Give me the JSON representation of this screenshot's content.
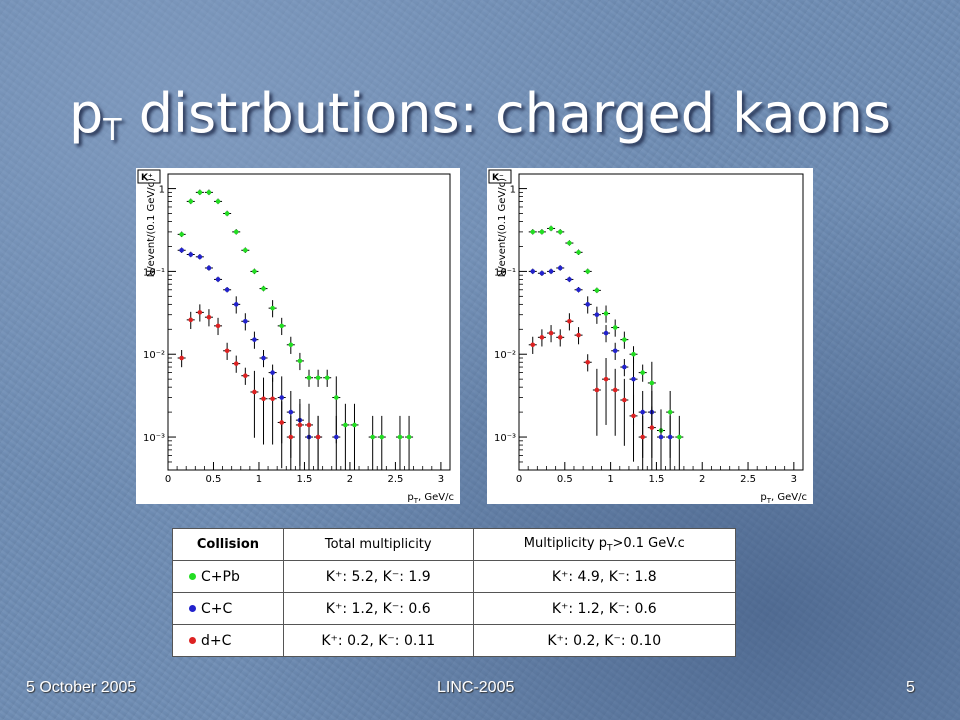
{
  "slide": {
    "title_main": "p",
    "title_sub": "T",
    "title_rest": " distrbutions: charged kaons"
  },
  "footer": {
    "date": "5 October 2005",
    "event": "LINC-2005",
    "page": "5"
  },
  "colors": {
    "CPb": "#22dd22",
    "CC": "#2222cc",
    "dC": "#dd2222"
  },
  "chart_data": [
    {
      "type": "scatter",
      "label_box": "K⁺",
      "xlabel": "p_T, GeV/c",
      "ylabel": "N/event/(0.1 GeV/c)",
      "log_y": true,
      "xlim": [
        0,
        3.1
      ],
      "ylim": [
        0.0004,
        1.5
      ],
      "x_ticks": [
        "0",
        "0.5",
        "1",
        "1.5",
        "2",
        "2.5",
        "3"
      ],
      "y_ticks": [
        "10⁻³",
        "10⁻²",
        "10⁻¹",
        "1"
      ],
      "series": [
        {
          "key": "CPb",
          "color": "#22dd22",
          "points": [
            [
              0.15,
              0.28
            ],
            [
              0.25,
              0.7
            ],
            [
              0.35,
              0.9
            ],
            [
              0.45,
              0.9
            ],
            [
              0.55,
              0.7
            ],
            [
              0.65,
              0.5
            ],
            [
              0.75,
              0.3
            ],
            [
              0.85,
              0.18
            ],
            [
              0.95,
              0.1
            ],
            [
              1.05,
              0.062
            ],
            [
              1.15,
              0.036
            ],
            [
              1.25,
              0.022
            ],
            [
              1.35,
              0.013
            ],
            [
              1.45,
              0.0083
            ],
            [
              1.55,
              0.0052
            ],
            [
              1.65,
              0.0052
            ],
            [
              1.75,
              0.0052
            ],
            [
              1.85,
              0.003
            ],
            [
              1.95,
              0.0014
            ],
            [
              2.05,
              0.0014
            ],
            [
              2.25,
              0.001
            ],
            [
              2.35,
              0.001
            ],
            [
              2.55,
              0.001
            ],
            [
              2.65,
              0.001
            ]
          ]
        },
        {
          "key": "CC",
          "color": "#2222cc",
          "points": [
            [
              0.15,
              0.18
            ],
            [
              0.25,
              0.16
            ],
            [
              0.35,
              0.15
            ],
            [
              0.45,
              0.11
            ],
            [
              0.55,
              0.08
            ],
            [
              0.65,
              0.06
            ],
            [
              0.75,
              0.04
            ],
            [
              0.85,
              0.025
            ],
            [
              0.95,
              0.015
            ],
            [
              1.05,
              0.009
            ],
            [
              1.15,
              0.006
            ],
            [
              1.25,
              0.003
            ],
            [
              1.35,
              0.002
            ],
            [
              1.45,
              0.0016
            ],
            [
              1.55,
              0.001
            ],
            [
              1.65,
              0.001
            ],
            [
              1.85,
              0.001
            ]
          ]
        },
        {
          "key": "dC",
          "color": "#dd2222",
          "points": [
            [
              0.15,
              0.009
            ],
            [
              0.25,
              0.026
            ],
            [
              0.35,
              0.032
            ],
            [
              0.45,
              0.028
            ],
            [
              0.55,
              0.022
            ],
            [
              0.65,
              0.011
            ],
            [
              0.75,
              0.0077
            ],
            [
              0.85,
              0.0055
            ],
            [
              0.95,
              0.0035
            ],
            [
              1.05,
              0.0029
            ],
            [
              1.15,
              0.0029
            ],
            [
              1.25,
              0.0015
            ],
            [
              1.35,
              0.001
            ],
            [
              1.45,
              0.0014
            ],
            [
              1.55,
              0.0014
            ],
            [
              1.65,
              0.001
            ]
          ]
        }
      ]
    },
    {
      "type": "scatter",
      "label_box": "K⁻",
      "xlabel": "p_T, GeV/c",
      "ylabel": "N/event/(0.1 GeV/c)",
      "log_y": true,
      "xlim": [
        0,
        3.1
      ],
      "ylim": [
        0.0004,
        1.5
      ],
      "x_ticks": [
        "0",
        "0.5",
        "1",
        "1.5",
        "2",
        "2.5",
        "3"
      ],
      "y_ticks": [
        "10⁻³",
        "10⁻²",
        "10⁻¹",
        "1"
      ],
      "series": [
        {
          "key": "CPb",
          "color": "#22dd22",
          "points": [
            [
              0.15,
              0.3
            ],
            [
              0.25,
              0.3
            ],
            [
              0.35,
              0.33
            ],
            [
              0.45,
              0.3
            ],
            [
              0.55,
              0.22
            ],
            [
              0.65,
              0.17
            ],
            [
              0.75,
              0.1
            ],
            [
              0.85,
              0.059
            ],
            [
              0.95,
              0.031
            ],
            [
              1.05,
              0.021
            ],
            [
              1.15,
              0.015
            ],
            [
              1.25,
              0.01
            ],
            [
              1.35,
              0.006
            ],
            [
              1.45,
              0.0045
            ],
            [
              1.55,
              0.0012
            ],
            [
              1.65,
              0.002
            ],
            [
              1.75,
              0.001
            ]
          ]
        },
        {
          "key": "CC",
          "color": "#2222cc",
          "points": [
            [
              0.15,
              0.1
            ],
            [
              0.25,
              0.095
            ],
            [
              0.35,
              0.1
            ],
            [
              0.45,
              0.11
            ],
            [
              0.55,
              0.08
            ],
            [
              0.65,
              0.06
            ],
            [
              0.75,
              0.04
            ],
            [
              0.85,
              0.03
            ],
            [
              0.95,
              0.018
            ],
            [
              1.05,
              0.011
            ],
            [
              1.15,
              0.007
            ],
            [
              1.25,
              0.005
            ],
            [
              1.35,
              0.002
            ],
            [
              1.45,
              0.002
            ],
            [
              1.55,
              0.001
            ],
            [
              1.65,
              0.001
            ]
          ]
        },
        {
          "key": "dC",
          "color": "#dd2222",
          "points": [
            [
              0.15,
              0.013
            ],
            [
              0.25,
              0.016
            ],
            [
              0.35,
              0.018
            ],
            [
              0.45,
              0.016
            ],
            [
              0.55,
              0.025
            ],
            [
              0.65,
              0.017
            ],
            [
              0.75,
              0.008
            ],
            [
              0.85,
              0.0037
            ],
            [
              0.95,
              0.005
            ],
            [
              1.05,
              0.0037
            ],
            [
              1.15,
              0.0028
            ],
            [
              1.25,
              0.0018
            ],
            [
              1.35,
              0.001
            ],
            [
              1.45,
              0.0013
            ]
          ]
        }
      ]
    }
  ],
  "table": {
    "headers": {
      "collision": "Collision",
      "total": "Total multiplicity",
      "pt_main": "Multiplicity p",
      "pt_sub": "T",
      "pt_rest": ">0.1 GeV.c"
    },
    "rows": [
      {
        "key": "CPb",
        "collision": "C+Pb",
        "total": "K⁺: 5.2, K⁻: 1.9",
        "pt": "K⁺: 4.9, K⁻: 1.8"
      },
      {
        "key": "CC",
        "collision": "C+C",
        "total": "K⁺: 1.2, K⁻: 0.6",
        "pt": "K⁺: 1.2, K⁻: 0.6"
      },
      {
        "key": "dC",
        "collision": "d+C",
        "total": "K⁺: 0.2, K⁻: 0.11",
        "pt": "K⁺: 0.2, K⁻: 0.10"
      }
    ]
  }
}
